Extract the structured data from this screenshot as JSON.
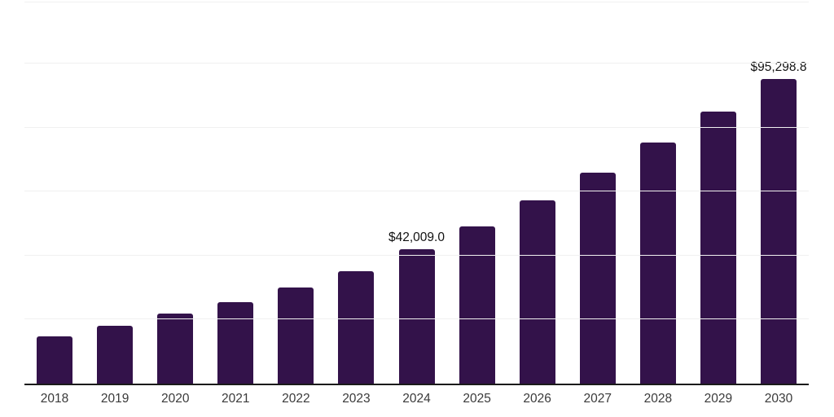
{
  "chart_data": {
    "type": "bar",
    "title": "",
    "xlabel": "",
    "ylabel": "",
    "categories": [
      "2018",
      "2019",
      "2020",
      "2021",
      "2022",
      "2023",
      "2024",
      "2025",
      "2026",
      "2027",
      "2028",
      "2029",
      "2030"
    ],
    "values": [
      14800,
      18100,
      21800,
      25500,
      30100,
      35200,
      42009.0,
      49200,
      57300,
      66000,
      75300,
      85000,
      95298.8
    ],
    "data_labels": {
      "2024": "$42,009.0",
      "2030": "$95,298.8"
    },
    "ylim": [
      0,
      119124
    ],
    "grid_interval": 20000,
    "grid": "on",
    "legend": "none",
    "bar_color": "#33124A",
    "grid_color": "#f0f0f0",
    "axis_line_color": "#1a1a1a",
    "data_label_color": "#111111",
    "tick_label_color": "#3a3a3a",
    "background_color": "#ffffff"
  }
}
